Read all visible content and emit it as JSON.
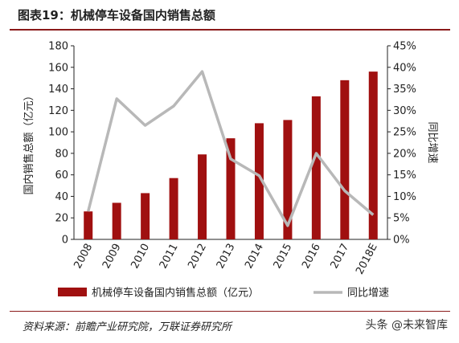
{
  "header": {
    "title": "图表19：机械停车设备国内销售总额"
  },
  "footer": {
    "source": "资料来源：前瞻产业研究院，万联证券研究所",
    "watermark": "头条 @未来智库"
  },
  "colors": {
    "bar": "#a01010",
    "line": "#b8b8b8",
    "rule": "#8a1a1a"
  },
  "chart_data": {
    "type": "bar+line",
    "categories": [
      "2008",
      "2009",
      "2010",
      "2011",
      "2012",
      "2013",
      "2014",
      "2015",
      "2016",
      "2017",
      "2018E"
    ],
    "series": [
      {
        "name": "机械停车设备国内销售总额（亿元）",
        "type": "bar",
        "axis": "left",
        "values": [
          26,
          34,
          43,
          57,
          79,
          94,
          108,
          111,
          133,
          148,
          156
        ]
      },
      {
        "name": "同比增速",
        "type": "line",
        "axis": "right",
        "values": [
          6.5,
          32.7,
          26.5,
          31,
          39,
          18.7,
          14.8,
          3.2,
          20,
          11.3,
          5.7
        ]
      }
    ],
    "ylabel_left": "国内销售总额（亿元）",
    "ylabel_right": "同比增速",
    "ylim_left": [
      0,
      180
    ],
    "ylim_right": [
      0,
      45
    ],
    "yticks_left": [
      "0",
      "20",
      "40",
      "60",
      "80",
      "100",
      "120",
      "140",
      "160",
      "180"
    ],
    "yticks_right": [
      "0%",
      "5%",
      "10%",
      "15%",
      "20%",
      "25%",
      "30%",
      "35%",
      "40%",
      "45%"
    ],
    "grid": false,
    "legend_position": "bottom"
  }
}
